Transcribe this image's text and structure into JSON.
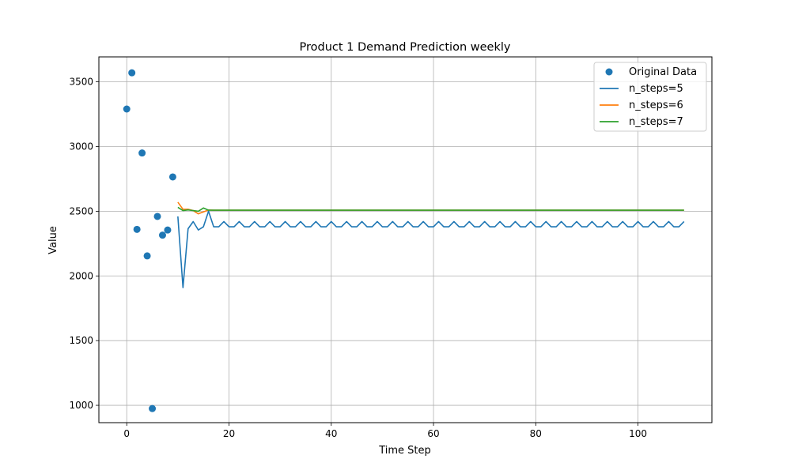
{
  "chart_data": {
    "type": "line",
    "title": "Product 1 Demand Prediction weekly",
    "xlabel": "Time Step",
    "ylabel": "Value",
    "xlim": [
      -5.45,
      114.45
    ],
    "ylim": [
      866,
      3693
    ],
    "xticks": [
      0,
      20,
      40,
      60,
      80,
      100
    ],
    "yticks": [
      1000,
      1500,
      2000,
      2500,
      3000,
      3500
    ],
    "grid": true,
    "legend_position": "top-right",
    "original_data": {
      "name": "Original Data",
      "color": "#1f77b4",
      "x": [
        0,
        1,
        2,
        3,
        4,
        5,
        6,
        7,
        8,
        9
      ],
      "y": [
        3290,
        3570,
        2360,
        2950,
        2155,
        975,
        2460,
        2315,
        2355,
        2765
      ]
    },
    "series": [
      {
        "name": "n_steps=5",
        "color": "#1f77b4",
        "x_start": 10,
        "values": [
          2460,
          1910,
          2365,
          2420,
          2355,
          2380,
          2500,
          2380,
          2380,
          2420,
          2380,
          2380,
          2420,
          2380,
          2380,
          2420,
          2380,
          2380,
          2420,
          2380,
          2380,
          2420,
          2380,
          2380,
          2420,
          2380,
          2380,
          2420,
          2380,
          2380,
          2420,
          2380,
          2380,
          2420,
          2380,
          2380,
          2420,
          2380,
          2380,
          2420,
          2380,
          2380,
          2420,
          2380,
          2380,
          2420,
          2380,
          2380,
          2420,
          2380,
          2380,
          2420,
          2380,
          2380,
          2420,
          2380,
          2380,
          2420,
          2380,
          2380,
          2420,
          2380,
          2380,
          2420,
          2380,
          2380,
          2420,
          2380,
          2380,
          2420,
          2380,
          2380,
          2420,
          2380,
          2380,
          2420,
          2380,
          2380,
          2420,
          2380,
          2380,
          2420,
          2380,
          2380,
          2420,
          2380,
          2380,
          2420,
          2380,
          2380,
          2420,
          2380,
          2380,
          2420,
          2380,
          2380,
          2420,
          2380,
          2380,
          2420
        ]
      },
      {
        "name": "n_steps=6",
        "color": "#ff7f0e",
        "x_start": 10,
        "values": [
          2570,
          2515,
          2515,
          2505,
          2480,
          2495,
          2510,
          2508,
          2508,
          2508,
          2508,
          2508,
          2508,
          2508,
          2508,
          2508,
          2508,
          2508,
          2508,
          2508,
          2508,
          2508,
          2508,
          2508,
          2508,
          2508,
          2508,
          2508,
          2508,
          2508,
          2508,
          2508,
          2508,
          2508,
          2508,
          2508,
          2508,
          2508,
          2508,
          2508,
          2508,
          2508,
          2508,
          2508,
          2508,
          2508,
          2508,
          2508,
          2508,
          2508,
          2508,
          2508,
          2508,
          2508,
          2508,
          2508,
          2508,
          2508,
          2508,
          2508,
          2508,
          2508,
          2508,
          2508,
          2508,
          2508,
          2508,
          2508,
          2508,
          2508,
          2508,
          2508,
          2508,
          2508,
          2508,
          2508,
          2508,
          2508,
          2508,
          2508,
          2508,
          2508,
          2508,
          2508,
          2508,
          2508,
          2508,
          2508,
          2508,
          2508,
          2508,
          2508,
          2508,
          2508,
          2508,
          2508,
          2508,
          2508,
          2508,
          2508
        ]
      },
      {
        "name": "n_steps=7",
        "color": "#2ca02c",
        "x_start": 10,
        "values": [
          2530,
          2505,
          2510,
          2505,
          2500,
          2525,
          2508,
          2508,
          2508,
          2508,
          2508,
          2508,
          2508,
          2508,
          2508,
          2508,
          2508,
          2508,
          2508,
          2508,
          2508,
          2508,
          2508,
          2508,
          2508,
          2508,
          2508,
          2508,
          2508,
          2508,
          2508,
          2508,
          2508,
          2508,
          2508,
          2508,
          2508,
          2508,
          2508,
          2508,
          2508,
          2508,
          2508,
          2508,
          2508,
          2508,
          2508,
          2508,
          2508,
          2508,
          2508,
          2508,
          2508,
          2508,
          2508,
          2508,
          2508,
          2508,
          2508,
          2508,
          2508,
          2508,
          2508,
          2508,
          2508,
          2508,
          2508,
          2508,
          2508,
          2508,
          2508,
          2508,
          2508,
          2508,
          2508,
          2508,
          2508,
          2508,
          2508,
          2508,
          2508,
          2508,
          2508,
          2508,
          2508,
          2508,
          2508,
          2508,
          2508,
          2508,
          2508,
          2508,
          2508,
          2508,
          2508,
          2508,
          2508,
          2508,
          2508,
          2508
        ]
      }
    ]
  }
}
